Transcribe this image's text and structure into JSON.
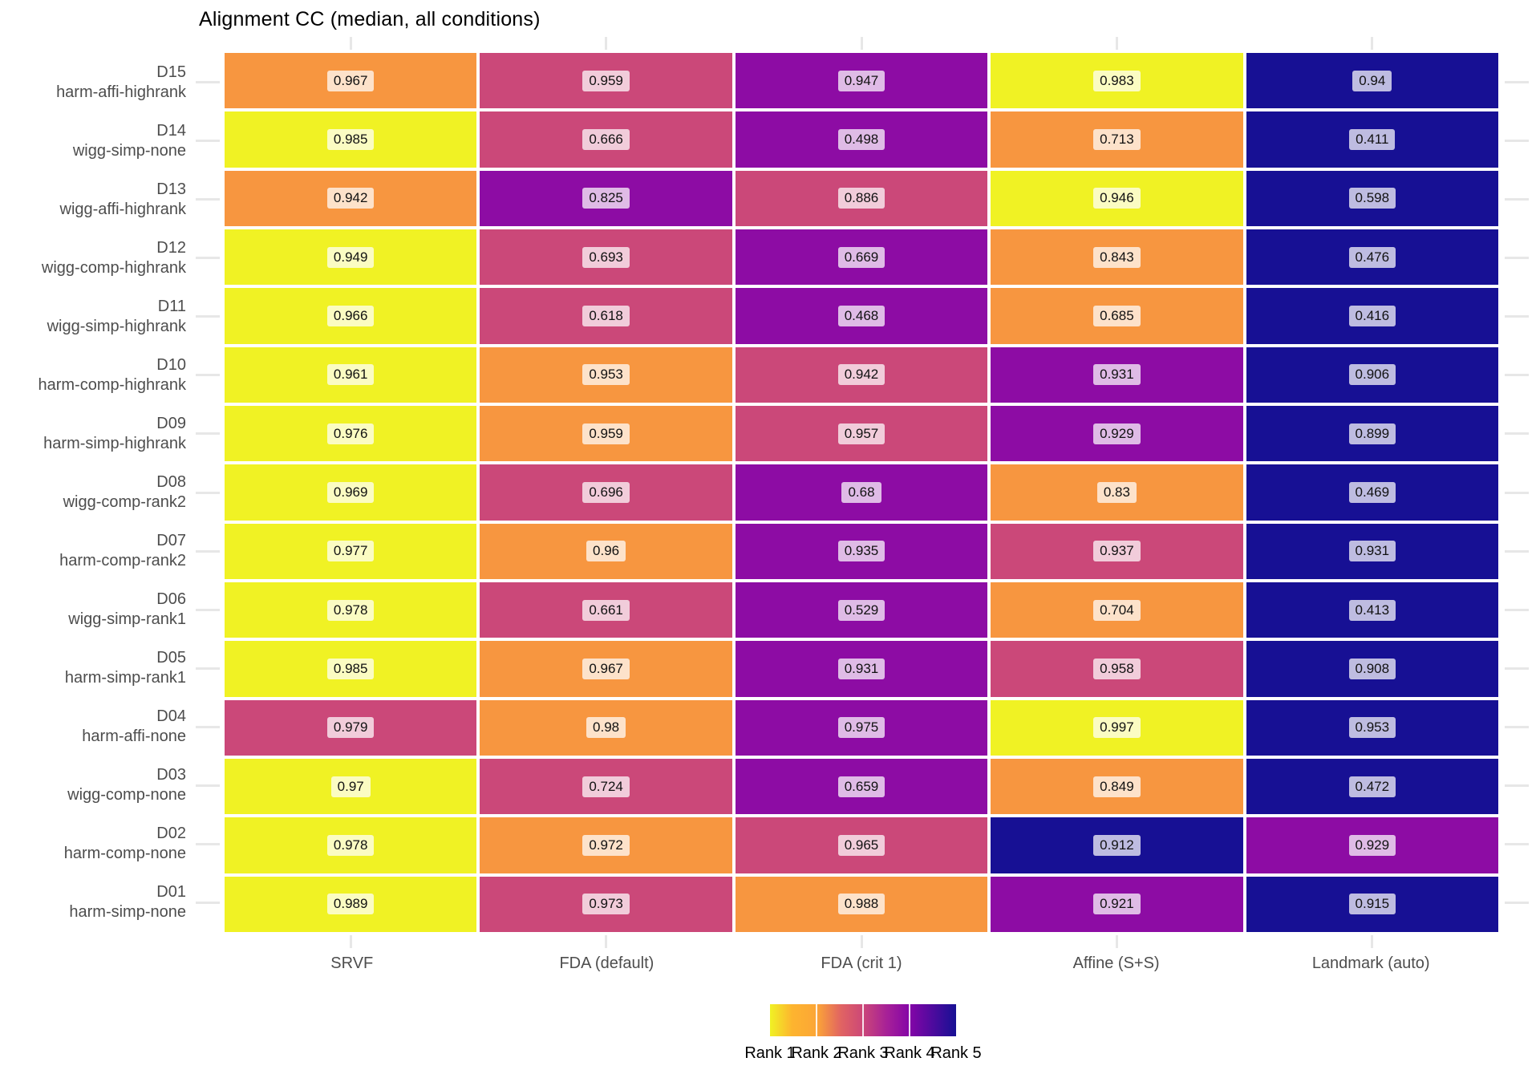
{
  "title": "Alignment CC (median, all conditions)",
  "chart_data": {
    "type": "heatmap",
    "title": "Alignment CC (median, all conditions)",
    "columns": [
      "SRVF",
      "FDA (default)",
      "FDA (crit 1)",
      "Affine (S+S)",
      "Landmark (auto)"
    ],
    "rows": [
      {
        "id": "D15",
        "condition": "harm-affi-highrank",
        "values": [
          "0.967",
          "0.959",
          "0.947",
          "0.983",
          "0.94"
        ],
        "ranks": [
          2,
          3,
          4,
          1,
          5
        ]
      },
      {
        "id": "D14",
        "condition": "wigg-simp-none",
        "values": [
          "0.985",
          "0.666",
          "0.498",
          "0.713",
          "0.411"
        ],
        "ranks": [
          1,
          3,
          4,
          2,
          5
        ]
      },
      {
        "id": "D13",
        "condition": "wigg-affi-highrank",
        "values": [
          "0.942",
          "0.825",
          "0.886",
          "0.946",
          "0.598"
        ],
        "ranks": [
          2,
          4,
          3,
          1,
          5
        ]
      },
      {
        "id": "D12",
        "condition": "wigg-comp-highrank",
        "values": [
          "0.949",
          "0.693",
          "0.669",
          "0.843",
          "0.476"
        ],
        "ranks": [
          1,
          3,
          4,
          2,
          5
        ]
      },
      {
        "id": "D11",
        "condition": "wigg-simp-highrank",
        "values": [
          "0.966",
          "0.618",
          "0.468",
          "0.685",
          "0.416"
        ],
        "ranks": [
          1,
          3,
          4,
          2,
          5
        ]
      },
      {
        "id": "D10",
        "condition": "harm-comp-highrank",
        "values": [
          "0.961",
          "0.953",
          "0.942",
          "0.931",
          "0.906"
        ],
        "ranks": [
          1,
          2,
          3,
          4,
          5
        ]
      },
      {
        "id": "D09",
        "condition": "harm-simp-highrank",
        "values": [
          "0.976",
          "0.959",
          "0.957",
          "0.929",
          "0.899"
        ],
        "ranks": [
          1,
          2,
          3,
          4,
          5
        ]
      },
      {
        "id": "D08",
        "condition": "wigg-comp-rank2",
        "values": [
          "0.969",
          "0.696",
          "0.68",
          "0.83",
          "0.469"
        ],
        "ranks": [
          1,
          3,
          4,
          2,
          5
        ]
      },
      {
        "id": "D07",
        "condition": "harm-comp-rank2",
        "values": [
          "0.977",
          "0.96",
          "0.935",
          "0.937",
          "0.931"
        ],
        "ranks": [
          1,
          2,
          4,
          3,
          5
        ]
      },
      {
        "id": "D06",
        "condition": "wigg-simp-rank1",
        "values": [
          "0.978",
          "0.661",
          "0.529",
          "0.704",
          "0.413"
        ],
        "ranks": [
          1,
          3,
          4,
          2,
          5
        ]
      },
      {
        "id": "D05",
        "condition": "harm-simp-rank1",
        "values": [
          "0.985",
          "0.967",
          "0.931",
          "0.958",
          "0.908"
        ],
        "ranks": [
          1,
          2,
          4,
          3,
          5
        ]
      },
      {
        "id": "D04",
        "condition": "harm-affi-none",
        "values": [
          "0.979",
          "0.98",
          "0.975",
          "0.997",
          "0.953"
        ],
        "ranks": [
          3,
          2,
          4,
          1,
          5
        ]
      },
      {
        "id": "D03",
        "condition": "wigg-comp-none",
        "values": [
          "0.97",
          "0.724",
          "0.659",
          "0.849",
          "0.472"
        ],
        "ranks": [
          1,
          3,
          4,
          2,
          5
        ]
      },
      {
        "id": "D02",
        "condition": "harm-comp-none",
        "values": [
          "0.978",
          "0.972",
          "0.965",
          "0.912",
          "0.929"
        ],
        "ranks": [
          1,
          2,
          3,
          5,
          4
        ]
      },
      {
        "id": "D01",
        "condition": "harm-simp-none",
        "values": [
          "0.989",
          "0.973",
          "0.988",
          "0.921",
          "0.915"
        ],
        "ranks": [
          1,
          3,
          2,
          4,
          5
        ]
      }
    ],
    "rank_colors": {
      "1": "#F0F224",
      "2": "#F79640",
      "3": "#CB4879",
      "4": "#8D0CA4",
      "5": "#171094"
    },
    "legend": {
      "labels": [
        "Rank 1",
        "Rank 2",
        "Rank 3",
        "Rank 4",
        "Rank 5"
      ],
      "label_positions_pct": [
        0,
        25,
        50,
        75,
        100
      ],
      "tick_positions_pct": [
        25,
        50,
        75
      ],
      "gradient": [
        "#F0F224 0%",
        "#FDB42F 12%",
        "#FCA636 25%",
        "#E16462 38%",
        "#CC4778 50%",
        "#A62098 63%",
        "#8405A7 75%",
        "#171094 100%"
      ]
    },
    "grid": {
      "stub_color": "#e7e7e7"
    },
    "layout": {
      "legend_position": "bottom",
      "value_labels": true
    }
  }
}
